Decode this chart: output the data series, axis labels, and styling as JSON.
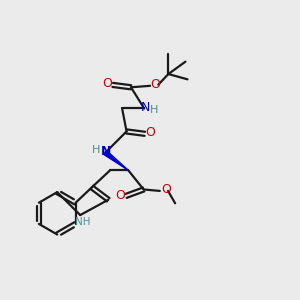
{
  "bg_color": "#ebebeb",
  "bond_color": "#1a1a1a",
  "N_color": "#0000cc",
  "O_color": "#cc0000",
  "NH_teal": "#4a9090",
  "figsize": [
    3.0,
    3.0
  ],
  "dpi": 100,
  "xlim": [
    0,
    10
  ],
  "ylim": [
    0,
    10
  ]
}
